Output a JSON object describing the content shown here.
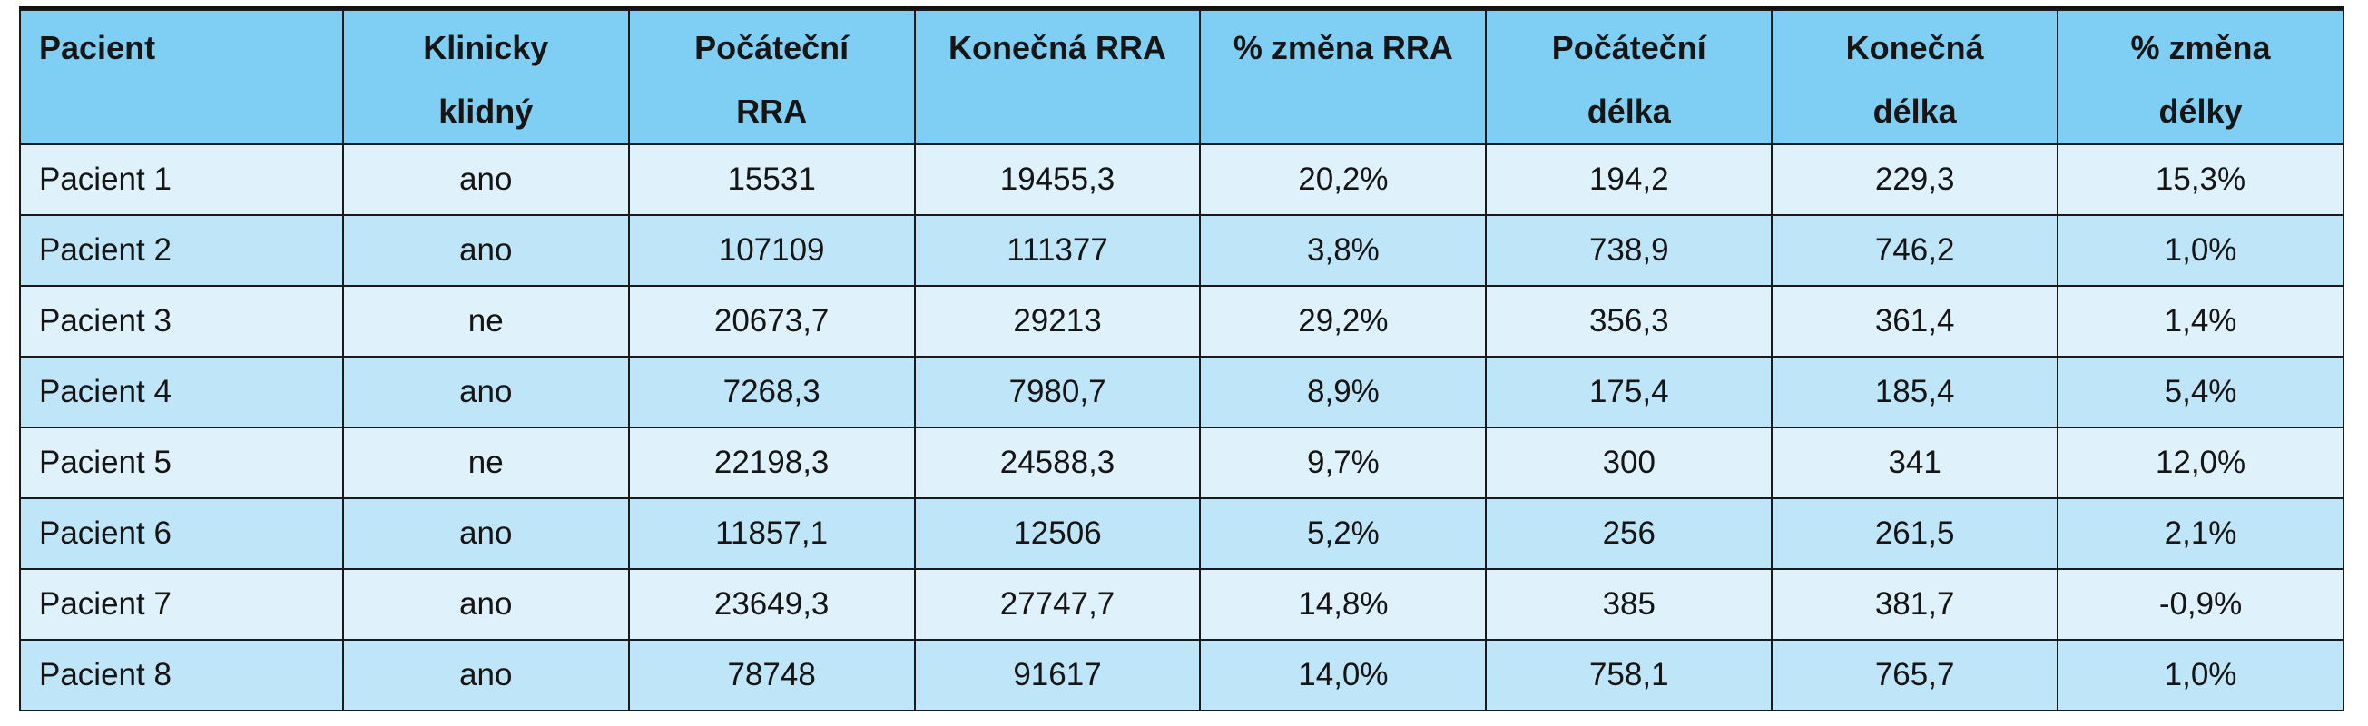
{
  "table": {
    "headers": [
      [
        "Pacient"
      ],
      [
        "Klinicky",
        "klidný"
      ],
      [
        "Počáteční",
        "RRA"
      ],
      [
        "Konečná RRA"
      ],
      [
        "% změna RRA"
      ],
      [
        "Počáteční",
        "délka"
      ],
      [
        "Konečná",
        "délka"
      ],
      [
        "% změna",
        "délky"
      ]
    ],
    "rows": [
      [
        "Pacient 1",
        "ano",
        "15531",
        "19455,3",
        "20,2%",
        "194,2",
        "229,3",
        "15,3%"
      ],
      [
        "Pacient 2",
        "ano",
        "107109",
        "111377",
        "3,8%",
        "738,9",
        "746,2",
        "1,0%"
      ],
      [
        "Pacient 3",
        "ne",
        "20673,7",
        "29213",
        "29,2%",
        "356,3",
        "361,4",
        "1,4%"
      ],
      [
        "Pacient 4",
        "ano",
        "7268,3",
        "7980,7",
        "8,9%",
        "175,4",
        "185,4",
        "5,4%"
      ],
      [
        "Pacient 5",
        "ne",
        "22198,3",
        "24588,3",
        "9,7%",
        "300",
        "341",
        "12,0%"
      ],
      [
        "Pacient 6",
        "ano",
        "11857,1",
        "12506",
        "5,2%",
        "256",
        "261,5",
        "2,1%"
      ],
      [
        "Pacient 7",
        "ano",
        "23649,3",
        "27747,7",
        "14,8%",
        "385",
        "381,7",
        "-0,9%"
      ],
      [
        "Pacient 8",
        "ano",
        "78748",
        "91617",
        "14,0%",
        "758,1",
        "765,7",
        "1,0%"
      ]
    ]
  },
  "colors": {
    "header_bg": "#7fcff4",
    "row_light": "#dff2fc",
    "row_dark": "#bfe5f8",
    "border": "#1a1a1a"
  }
}
